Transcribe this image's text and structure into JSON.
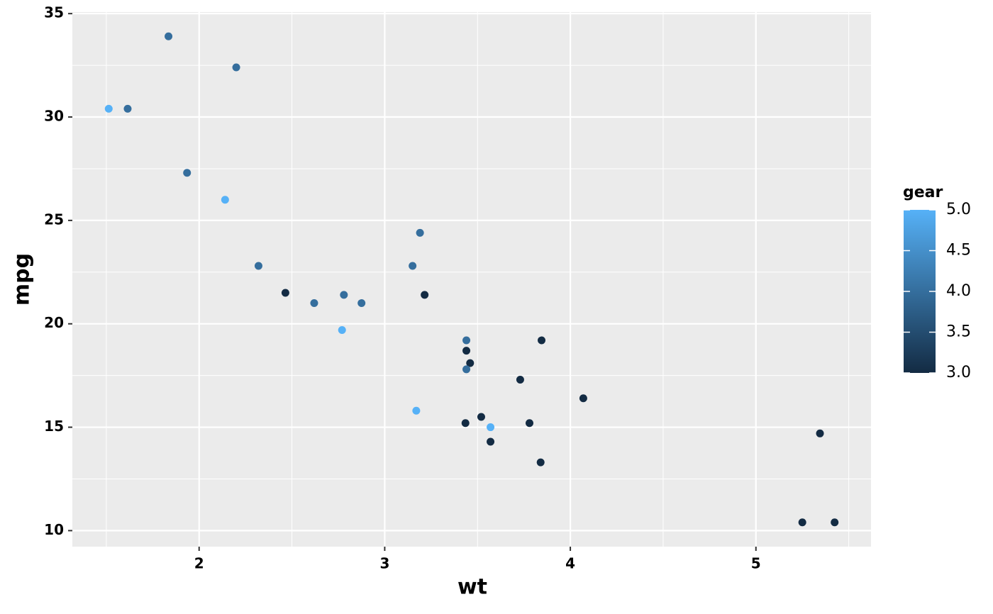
{
  "chart_data": {
    "type": "scatter",
    "x_label": "wt",
    "y_label": "mpg",
    "x": [
      2.62,
      2.875,
      2.32,
      3.215,
      3.44,
      3.46,
      3.57,
      3.19,
      3.15,
      3.44,
      3.44,
      4.07,
      3.73,
      3.78,
      5.25,
      5.424,
      5.345,
      2.2,
      1.615,
      1.835,
      2.465,
      3.52,
      3.435,
      3.84,
      3.845,
      1.935,
      2.14,
      1.513,
      3.17,
      2.77,
      3.57,
      2.78
    ],
    "values": [
      21.0,
      21.0,
      22.8,
      21.4,
      18.7,
      18.1,
      14.3,
      24.4,
      22.8,
      19.2,
      17.8,
      16.4,
      17.3,
      15.2,
      10.4,
      10.4,
      14.7,
      32.4,
      30.4,
      33.9,
      21.5,
      15.5,
      15.2,
      13.3,
      19.2,
      27.3,
      26.0,
      30.4,
      15.8,
      19.7,
      15.0,
      21.4
    ],
    "gear": [
      4,
      4,
      4,
      3,
      3,
      3,
      3,
      4,
      4,
      4,
      4,
      3,
      3,
      3,
      3,
      3,
      3,
      4,
      4,
      4,
      3,
      3,
      3,
      3,
      3,
      4,
      5,
      5,
      5,
      5,
      5,
      4
    ],
    "legend_title": "gear",
    "color_low": "#132B43",
    "color_high": "#56B1F7",
    "colorlim": [
      3,
      5
    ],
    "colorticks": [
      {
        "value": 3,
        "label": "3.0"
      },
      {
        "value": 3.5,
        "label": "3.5"
      },
      {
        "value": 4,
        "label": "4.0"
      },
      {
        "value": 4.5,
        "label": "4.5"
      },
      {
        "value": 5,
        "label": "5.0"
      }
    ],
    "xlim": [
      1.317,
      5.62
    ],
    "ylim": [
      9.225,
      35.075
    ],
    "xticks": [
      2,
      3,
      4,
      5
    ],
    "yticks": [
      10,
      15,
      20,
      25,
      30,
      35
    ],
    "grid": true
  }
}
